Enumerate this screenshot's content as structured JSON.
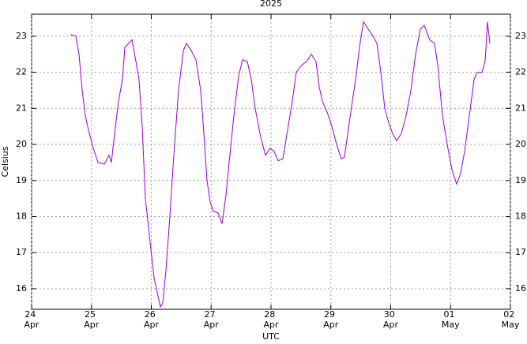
{
  "chart_data": {
    "type": "line",
    "title": "2025",
    "x_label": "UTC",
    "y_label": "Celsius",
    "xlim": [
      0,
      8
    ],
    "xticks": [
      {
        "value": 0,
        "label": "24 Apr"
      },
      {
        "value": 1,
        "label": "25 Apr"
      },
      {
        "value": 2,
        "label": "26 Apr"
      },
      {
        "value": 3,
        "label": "27 Apr"
      },
      {
        "value": 4,
        "label": "28 Apr"
      },
      {
        "value": 5,
        "label": "29 Apr"
      },
      {
        "value": 6,
        "label": "30 Apr"
      },
      {
        "value": 7,
        "label": "01 May"
      },
      {
        "value": 8,
        "label": "02 May"
      }
    ],
    "ylim": [
      15.43,
      23.61
    ],
    "yticks": [
      16,
      17,
      18,
      19,
      20,
      21,
      22,
      23
    ],
    "grid": true,
    "mirror_y_labels": true,
    "series": [
      {
        "color": "#9400d3",
        "x": [
          0.647,
          0.739,
          0.792,
          0.845,
          0.898,
          0.95,
          1.03,
          1.109,
          1.215,
          1.294,
          1.333,
          1.386,
          1.452,
          1.518,
          1.558,
          1.624,
          1.677,
          1.743,
          1.795,
          1.848,
          1.901,
          1.98,
          2.046,
          2.112,
          2.152,
          2.191,
          2.244,
          2.31,
          2.376,
          2.455,
          2.535,
          2.587,
          2.667,
          2.746,
          2.825,
          2.878,
          2.931,
          2.983,
          3.036,
          3.116,
          3.182,
          3.248,
          3.3,
          3.38,
          3.459,
          3.525,
          3.604,
          3.67,
          3.736,
          3.828,
          3.908,
          3.987,
          4.053,
          4.119,
          4.198,
          4.277,
          4.356,
          4.422,
          4.515,
          4.594,
          4.673,
          4.752,
          4.805,
          4.858,
          4.937,
          5.017,
          5.096,
          5.175,
          5.228,
          5.281,
          5.333,
          5.413,
          5.479,
          5.545,
          5.624,
          5.703,
          5.769,
          5.835,
          5.901,
          5.967,
          6.033,
          6.099,
          6.178,
          6.257,
          6.337,
          6.416,
          6.495,
          6.561,
          6.653,
          6.733,
          6.786,
          6.865,
          6.944,
          7.023,
          7.102,
          7.168,
          7.234,
          7.314,
          7.393,
          7.446,
          7.525,
          7.578,
          7.617,
          7.657
        ],
        "values": [
          23.05,
          23.0,
          22.5,
          21.5,
          20.8,
          20.4,
          19.9,
          19.5,
          19.45,
          19.7,
          19.5,
          20.3,
          21.2,
          21.8,
          22.7,
          22.8,
          22.9,
          22.3,
          21.8,
          20.5,
          18.5,
          17.3,
          16.3,
          15.8,
          15.5,
          15.6,
          16.5,
          18.0,
          19.7,
          21.5,
          22.6,
          22.8,
          22.6,
          22.35,
          21.5,
          20.3,
          19.0,
          18.4,
          18.15,
          18.1,
          17.8,
          18.6,
          19.5,
          20.8,
          21.9,
          22.35,
          22.3,
          21.8,
          21.0,
          20.2,
          19.7,
          19.9,
          19.8,
          19.55,
          19.6,
          20.4,
          21.2,
          22.0,
          22.2,
          22.3,
          22.5,
          22.3,
          21.6,
          21.2,
          20.9,
          20.5,
          20.0,
          19.6,
          19.65,
          20.3,
          20.9,
          21.8,
          22.7,
          23.4,
          23.2,
          23.0,
          22.8,
          22.0,
          21.0,
          20.6,
          20.3,
          20.1,
          20.3,
          20.8,
          21.5,
          22.5,
          23.2,
          23.3,
          22.9,
          22.8,
          22.2,
          20.8,
          20.0,
          19.3,
          18.9,
          19.2,
          19.8,
          20.8,
          21.8,
          22.0,
          22.0,
          22.3,
          23.4,
          22.8
        ]
      }
    ]
  }
}
